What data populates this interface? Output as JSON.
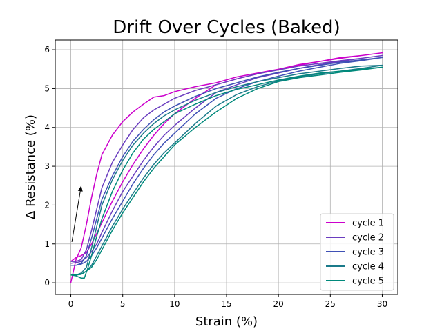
{
  "chart_data": {
    "type": "line",
    "title": "Drift Over Cycles (Baked)",
    "xlabel": "Strain (%)",
    "ylabel": "Δ Resistance (%)",
    "xlim": [
      -1.5,
      31.5
    ],
    "ylim": [
      -0.3,
      6.25
    ],
    "xticks": [
      0,
      5,
      10,
      15,
      20,
      25,
      30
    ],
    "yticks": [
      0,
      1,
      2,
      3,
      4,
      5,
      6
    ],
    "grid": true,
    "legend_position": "lower-right",
    "annotation": {
      "type": "arrow",
      "from": [
        0.1,
        1.05
      ],
      "to": [
        1.0,
        2.5
      ]
    },
    "series": [
      {
        "name": "cycle 1",
        "color": "#cc00cc",
        "loading": {
          "x": [
            0,
            0.5,
            1,
            1.5,
            2,
            2.5,
            3,
            4,
            5,
            6,
            7,
            8,
            9,
            10,
            12,
            14,
            16,
            18,
            20,
            22,
            24,
            26,
            28,
            30
          ],
          "y": [
            0.0,
            0.6,
            0.9,
            1.5,
            2.2,
            2.8,
            3.3,
            3.8,
            4.15,
            4.4,
            4.6,
            4.78,
            4.82,
            4.92,
            5.05,
            5.15,
            5.3,
            5.4,
            5.5,
            5.6,
            5.7,
            5.8,
            5.85,
            5.92
          ]
        },
        "unloading": {
          "x": [
            30,
            28,
            26,
            24,
            22,
            20,
            18,
            16,
            14,
            12,
            10,
            9,
            8,
            7,
            6,
            5,
            4,
            3,
            2,
            1.5,
            1,
            0.5,
            0
          ],
          "y": [
            5.92,
            5.85,
            5.78,
            5.7,
            5.62,
            5.5,
            5.38,
            5.25,
            5.1,
            4.75,
            4.35,
            4.1,
            3.8,
            3.45,
            3.05,
            2.6,
            2.1,
            1.55,
            1.0,
            0.78,
            0.7,
            0.65,
            0.55
          ]
        }
      },
      {
        "name": "cycle 2",
        "color": "#6a3dbf",
        "loading": {
          "x": [
            0,
            0.5,
            1,
            1.5,
            2,
            2.5,
            3,
            4,
            5,
            6,
            7,
            8,
            9,
            10,
            12,
            14,
            16,
            18,
            20,
            22,
            24,
            26,
            28,
            30
          ],
          "y": [
            0.55,
            0.55,
            0.6,
            0.85,
            1.35,
            1.9,
            2.45,
            3.1,
            3.55,
            3.95,
            4.25,
            4.45,
            4.6,
            4.75,
            4.95,
            5.1,
            5.25,
            5.38,
            5.48,
            5.58,
            5.65,
            5.72,
            5.78,
            5.85
          ]
        },
        "unloading": {
          "x": [
            30,
            28,
            26,
            24,
            22,
            20,
            18,
            16,
            14,
            12,
            10,
            9,
            8,
            7,
            6,
            5,
            4,
            3,
            2.5,
            2,
            1.5,
            1,
            0.5,
            0
          ],
          "y": [
            5.85,
            5.78,
            5.7,
            5.62,
            5.52,
            5.4,
            5.28,
            5.1,
            4.9,
            4.5,
            4.05,
            3.8,
            3.5,
            3.15,
            2.75,
            2.35,
            1.85,
            1.3,
            1.0,
            0.8,
            0.65,
            0.55,
            0.52,
            0.5
          ]
        }
      },
      {
        "name": "cycle 3",
        "color": "#3f51b5",
        "loading": {
          "x": [
            0,
            0.5,
            1,
            1.5,
            2,
            2.5,
            3,
            4,
            5,
            6,
            7,
            8,
            9,
            10,
            12,
            14,
            16,
            18,
            20,
            22,
            24,
            26,
            28,
            30
          ],
          "y": [
            0.45,
            0.45,
            0.5,
            0.7,
            1.15,
            1.65,
            2.15,
            2.75,
            3.25,
            3.65,
            3.95,
            4.2,
            4.4,
            4.55,
            4.8,
            5.0,
            5.15,
            5.3,
            5.42,
            5.52,
            5.6,
            5.68,
            5.74,
            5.8
          ]
        },
        "unloading": {
          "x": [
            30,
            28,
            26,
            24,
            22,
            20,
            18,
            16,
            14,
            12,
            10,
            9,
            8,
            7,
            6,
            5,
            4,
            3,
            2.5,
            2,
            1.5,
            1,
            0.5,
            0
          ],
          "y": [
            5.8,
            5.72,
            5.65,
            5.55,
            5.45,
            5.32,
            5.18,
            5.0,
            4.75,
            4.35,
            3.85,
            3.6,
            3.3,
            2.95,
            2.55,
            2.1,
            1.65,
            1.15,
            0.9,
            0.7,
            0.55,
            0.48,
            0.45,
            0.45
          ]
        }
      },
      {
        "name": "cycle 4",
        "color": "#1a7a8a",
        "loading": {
          "x": [
            0,
            0.5,
            1,
            1.5,
            2,
            2.5,
            3,
            4,
            5,
            6,
            7,
            8,
            9,
            10,
            12,
            14,
            16,
            18,
            20,
            22,
            24,
            26,
            28,
            30
          ],
          "y": [
            0.2,
            0.2,
            0.25,
            0.4,
            0.9,
            1.45,
            2.0,
            2.65,
            3.15,
            3.55,
            3.85,
            4.1,
            4.3,
            4.45,
            4.7,
            4.9,
            5.05,
            5.18,
            5.28,
            5.38,
            5.45,
            5.52,
            5.58,
            5.6
          ]
        },
        "unloading": {
          "x": [
            30,
            28,
            26,
            24,
            22,
            20,
            18,
            16,
            14,
            12,
            10,
            9,
            8,
            7,
            6,
            5,
            4,
            3,
            2.5,
            2,
            1.5,
            1,
            0.5,
            0
          ],
          "y": [
            5.6,
            5.52,
            5.45,
            5.38,
            5.3,
            5.2,
            5.05,
            4.85,
            4.55,
            4.1,
            3.6,
            3.35,
            3.05,
            2.7,
            2.3,
            1.9,
            1.45,
            0.95,
            0.7,
            0.45,
            0.3,
            0.22,
            0.2,
            0.2
          ]
        }
      },
      {
        "name": "cycle 5",
        "color": "#00897b",
        "loading": {
          "x": [
            0,
            0.5,
            1,
            1.3,
            1.6,
            2,
            2.5,
            3,
            4,
            5,
            6,
            7,
            8,
            9,
            10,
            12,
            14,
            16,
            18,
            20,
            22,
            24,
            26,
            28,
            30
          ],
          "y": [
            0.2,
            0.18,
            0.12,
            0.12,
            0.35,
            0.7,
            1.2,
            1.65,
            2.35,
            2.9,
            3.35,
            3.7,
            3.95,
            4.15,
            4.35,
            4.6,
            4.82,
            4.98,
            5.1,
            5.22,
            5.32,
            5.4,
            5.45,
            5.5,
            5.55
          ]
        },
        "unloading": {
          "x": [
            30,
            28,
            26,
            24,
            22,
            20,
            18,
            16,
            14,
            12,
            10,
            9,
            8,
            7,
            6,
            5,
            4,
            3,
            2.5,
            2,
            1.5,
            1,
            0.5,
            0
          ],
          "y": [
            5.55,
            5.48,
            5.42,
            5.35,
            5.28,
            5.18,
            5.0,
            4.75,
            4.4,
            4.0,
            3.55,
            3.25,
            2.95,
            2.6,
            2.2,
            1.8,
            1.35,
            0.85,
            0.6,
            0.4,
            0.3,
            0.22,
            0.2,
            0.2
          ]
        }
      }
    ]
  }
}
